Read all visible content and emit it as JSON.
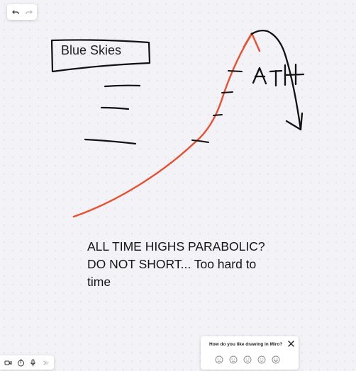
{
  "board": {
    "sticky_label": "Blue Skies",
    "annotation": "ATH",
    "note_lines": [
      "ALL TIME HIGHS PARABOLIC?",
      "DO NOT SHORT... Too hard to",
      "time"
    ]
  },
  "toolbar_top": {
    "icons": [
      "undo-icon",
      "redo-icon"
    ]
  },
  "toolbar_bottom": {
    "icons": [
      "video-icon",
      "timer-icon",
      "microphone-icon",
      "more-icon"
    ]
  },
  "feedback": {
    "question": "How do you like drawing in Miro?",
    "ratings": [
      "very-bad",
      "bad",
      "neutral",
      "good",
      "very-good"
    ]
  },
  "colors": {
    "curve": "#e8502f",
    "ink": "#111111",
    "background": "#f3f2f7"
  }
}
